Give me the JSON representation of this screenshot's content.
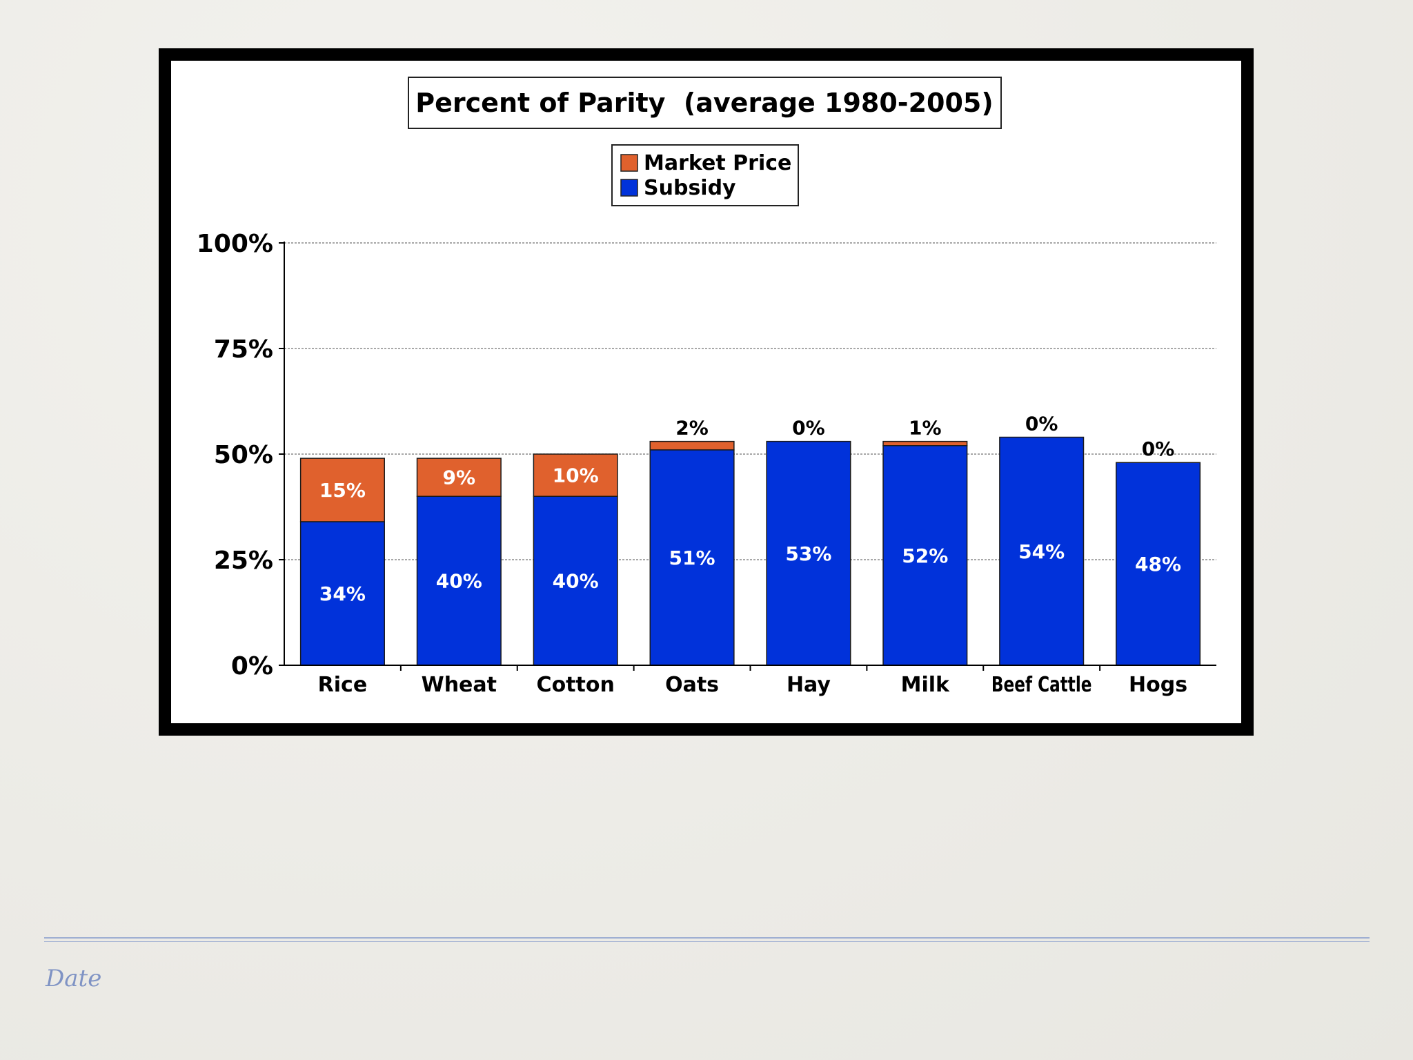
{
  "footer": {
    "date": "Date"
  },
  "colors": {
    "market": "#e0612d",
    "subsidy": "#0132da",
    "frame": "#000000"
  },
  "chart_data": {
    "type": "bar",
    "stacked": true,
    "title": "Percent of Parity  (average 1980-2005)",
    "categories": [
      "Rice",
      "Wheat",
      "Cotton",
      "Oats",
      "Hay",
      "Milk",
      "Beef Cattle",
      "Hogs"
    ],
    "series": [
      {
        "name": "Subsidy",
        "values": [
          34,
          40,
          40,
          51,
          53,
          52,
          54,
          48
        ],
        "labels": [
          "34%",
          "40%",
          "40%",
          "51%",
          "53%",
          "52%",
          "54%",
          "48%"
        ]
      },
      {
        "name": "Market Price",
        "values": [
          15,
          9,
          10,
          2,
          0,
          1,
          0,
          0
        ],
        "labels": [
          "15%",
          "9%",
          "10%",
          "2%",
          "0%",
          "1%",
          "0%",
          "0%"
        ]
      }
    ],
    "legend": [
      "Market Price",
      "Subsidy"
    ],
    "legend_position": "top-center",
    "yticks": [
      "0%",
      "25%",
      "50%",
      "75%",
      "100%"
    ],
    "ylim": [
      0,
      100
    ],
    "grid": true,
    "xlabel": "",
    "ylabel": ""
  }
}
